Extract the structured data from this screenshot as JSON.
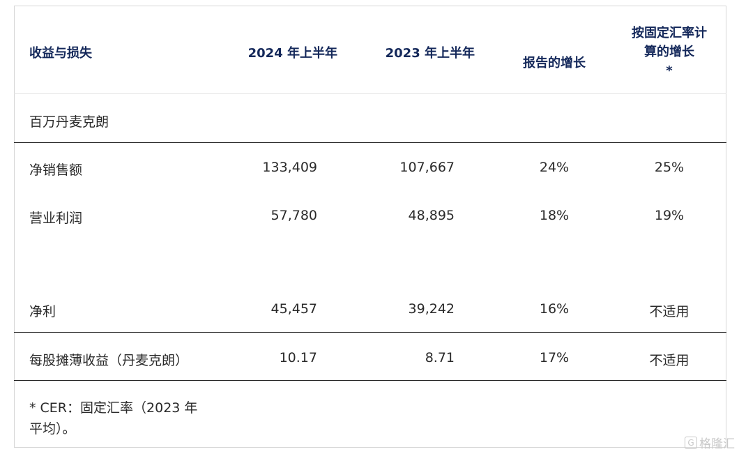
{
  "header": {
    "col1": "收益与损失",
    "col2": "2024 年上半年",
    "col3": "2023 年上半年",
    "col4": "报告的增长",
    "col5_line1": "按固定汇率计",
    "col5_line2": "算的增长",
    "col5_line3": "*"
  },
  "unit_label": "百万丹麦克朗",
  "rows": [
    {
      "label": "净销售额",
      "h1_2024": "133,409",
      "h1_2023": "107,667",
      "reported": "24%",
      "cer": "25%"
    },
    {
      "label": "营业利润",
      "h1_2024": "57,780",
      "h1_2023": "48,895",
      "reported": "18%",
      "cer": "19%"
    },
    {
      "label": "净利",
      "h1_2024": "45,457",
      "h1_2023": "39,242",
      "reported": "16%",
      "cer": "不适用"
    },
    {
      "label": "每股摊薄收益（丹麦克朗）",
      "h1_2024": "10.17",
      "h1_2023": "8.71",
      "reported": "17%",
      "cer": "不适用"
    }
  ],
  "footnote": "* CER：固定汇率（2023 年平均）。",
  "watermark": "格隆汇"
}
